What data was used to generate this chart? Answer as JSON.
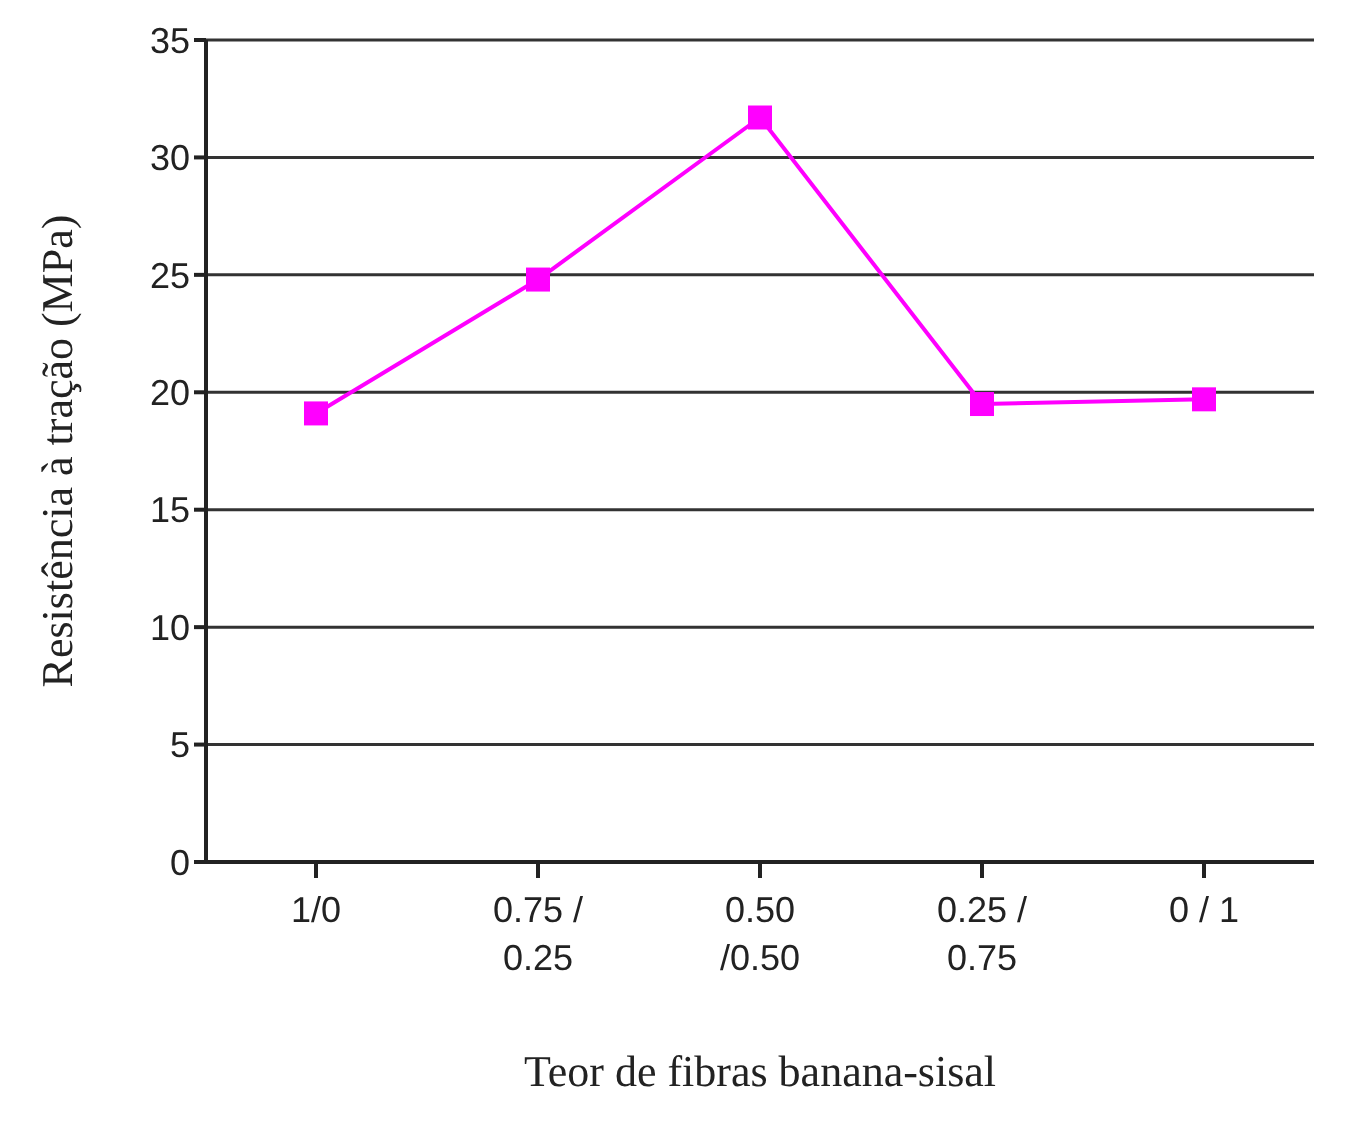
{
  "chart_data": {
    "type": "line",
    "xlabel": "Teor de fibras banana-sisal",
    "ylabel": "Resistência à tração (MPa)",
    "categories": [
      "1/0",
      "0.75 /\n0.25",
      "0.50\n/0.50",
      "0.25 /\n0.75",
      "0 / 1"
    ],
    "series": [
      {
        "color": "#ff00ff",
        "values": [
          19.1,
          24.8,
          31.7,
          19.5,
          19.7
        ]
      }
    ],
    "ylim": [
      0,
      35
    ],
    "yticks": [
      0,
      5,
      10,
      15,
      20,
      25,
      30,
      35
    ],
    "grid": "y",
    "marker": "square",
    "line_style": "solid",
    "legend": false
  }
}
